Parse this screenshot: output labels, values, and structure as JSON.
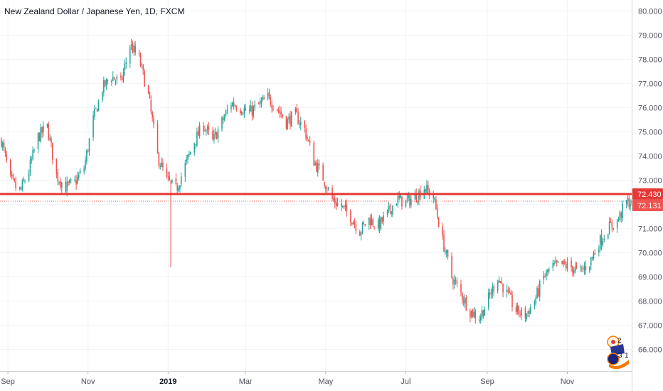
{
  "header": {
    "title": "New Zealand Dollar / Japanese Yen, 1D, FXCM"
  },
  "colors": {
    "up": "#26a69a",
    "down": "#ef5350",
    "horizontal_line": "#e53935",
    "last_price_line": "#ef5350",
    "grid": "#f0f3fa",
    "axis_text": "#50535e",
    "background": "#ffffff"
  },
  "price_axis": {
    "labels": [
      "80.000",
      "79.000",
      "78.000",
      "77.000",
      "76.000",
      "75.000",
      "74.000",
      "73.000",
      "72.000",
      "71.000",
      "70.000",
      "69.000",
      "68.000",
      "67.000",
      "66.000"
    ],
    "markers": [
      {
        "name": "horizontal-line-price",
        "value": "72.430"
      },
      {
        "name": "last-price",
        "value": "72.131"
      }
    ]
  },
  "time_axis": {
    "labels": [
      {
        "text": "Sep",
        "bold": false
      },
      {
        "text": "Nov",
        "bold": false
      },
      {
        "text": "2019",
        "bold": true
      },
      {
        "text": "Mar",
        "bold": false
      },
      {
        "text": "May",
        "bold": false
      },
      {
        "text": "Jul",
        "bold": false
      },
      {
        "text": "Sep",
        "bold": false
      },
      {
        "text": "Nov",
        "bold": false
      }
    ]
  },
  "event_badges": [
    {
      "icon": "economic-events-icon",
      "count": "2"
    },
    {
      "icon": "news-flags-icon",
      "count": "3",
      "count2": "1"
    }
  ],
  "chart_data": {
    "type": "candlestick",
    "title": "New Zealand Dollar / Japanese Yen, 1D, FXCM",
    "xlabel": "",
    "ylabel": "",
    "ylim": [
      65.0,
      80.3
    ],
    "x_range": [
      "2018-08-26",
      "2019-12-20"
    ],
    "grid": true,
    "y_ticks": [
      66,
      67,
      68,
      69,
      70,
      71,
      72,
      73,
      74,
      75,
      76,
      77,
      78,
      79,
      80
    ],
    "x_ticks": [
      {
        "label": "Sep",
        "date": "2018-09-01"
      },
      {
        "label": "Nov",
        "date": "2018-11-01"
      },
      {
        "label": "2019",
        "date": "2019-01-01"
      },
      {
        "label": "Mar",
        "date": "2019-03-01"
      },
      {
        "label": "May",
        "date": "2019-05-01"
      },
      {
        "label": "Jul",
        "date": "2019-07-01"
      },
      {
        "label": "Sep",
        "date": "2019-09-01"
      },
      {
        "label": "Nov",
        "date": "2019-11-01"
      }
    ],
    "horizontal_line": 72.43,
    "last_price": 72.131,
    "close_path": [
      [
        "2018-08-26",
        74.9
      ],
      [
        "2018-09-03",
        73.0
      ],
      [
        "2018-09-10",
        72.5
      ],
      [
        "2018-09-17",
        73.4
      ],
      [
        "2018-09-24",
        74.8
      ],
      [
        "2018-10-01",
        75.2
      ],
      [
        "2018-10-08",
        73.2
      ],
      [
        "2018-10-15",
        72.7
      ],
      [
        "2018-10-22",
        72.9
      ],
      [
        "2018-10-29",
        73.5
      ],
      [
        "2018-11-05",
        75.5
      ],
      [
        "2018-11-12",
        76.8
      ],
      [
        "2018-11-19",
        77.3
      ],
      [
        "2018-11-26",
        77.0
      ],
      [
        "2018-12-03",
        78.6
      ],
      [
        "2018-12-10",
        78.0
      ],
      [
        "2018-12-17",
        76.5
      ],
      [
        "2018-12-24",
        74.0
      ],
      [
        "2018-12-31",
        73.0
      ],
      [
        "2019-01-07",
        72.6
      ],
      [
        "2019-01-14",
        73.6
      ],
      [
        "2019-01-21",
        74.6
      ],
      [
        "2019-01-28",
        75.3
      ],
      [
        "2019-02-04",
        74.6
      ],
      [
        "2019-02-11",
        75.4
      ],
      [
        "2019-02-18",
        76.2
      ],
      [
        "2019-02-25",
        76.0
      ],
      [
        "2019-03-04",
        75.8
      ],
      [
        "2019-03-11",
        76.1
      ],
      [
        "2019-03-18",
        76.4
      ],
      [
        "2019-03-25",
        76.0
      ],
      [
        "2019-04-01",
        75.4
      ],
      [
        "2019-04-08",
        75.7
      ],
      [
        "2019-04-15",
        75.1
      ],
      [
        "2019-04-22",
        73.8
      ],
      [
        "2019-04-29",
        73.1
      ],
      [
        "2019-05-06",
        72.2
      ],
      [
        "2019-05-13",
        71.9
      ],
      [
        "2019-05-20",
        71.5
      ],
      [
        "2019-05-27",
        70.9
      ],
      [
        "2019-06-03",
        71.4
      ],
      [
        "2019-06-10",
        71.1
      ],
      [
        "2019-06-17",
        71.6
      ],
      [
        "2019-06-24",
        72.2
      ],
      [
        "2019-07-01",
        72.1
      ],
      [
        "2019-07-08",
        72.3
      ],
      [
        "2019-07-15",
        72.7
      ],
      [
        "2019-07-22",
        72.3
      ],
      [
        "2019-07-29",
        70.5
      ],
      [
        "2019-08-05",
        69.0
      ],
      [
        "2019-08-12",
        68.3
      ],
      [
        "2019-08-19",
        67.6
      ],
      [
        "2019-08-26",
        67.3
      ],
      [
        "2019-09-02",
        68.1
      ],
      [
        "2019-09-09",
        69.0
      ],
      [
        "2019-09-16",
        68.3
      ],
      [
        "2019-09-23",
        67.6
      ],
      [
        "2019-09-30",
        67.4
      ],
      [
        "2019-10-07",
        68.0
      ],
      [
        "2019-10-14",
        69.0
      ],
      [
        "2019-10-21",
        69.4
      ],
      [
        "2019-10-28",
        69.5
      ],
      [
        "2019-11-04",
        69.4
      ],
      [
        "2019-11-11",
        69.2
      ],
      [
        "2019-11-18",
        69.6
      ],
      [
        "2019-11-25",
        70.4
      ],
      [
        "2019-12-02",
        71.0
      ],
      [
        "2019-12-09",
        71.3
      ],
      [
        "2019-12-16",
        72.1
      ]
    ]
  }
}
